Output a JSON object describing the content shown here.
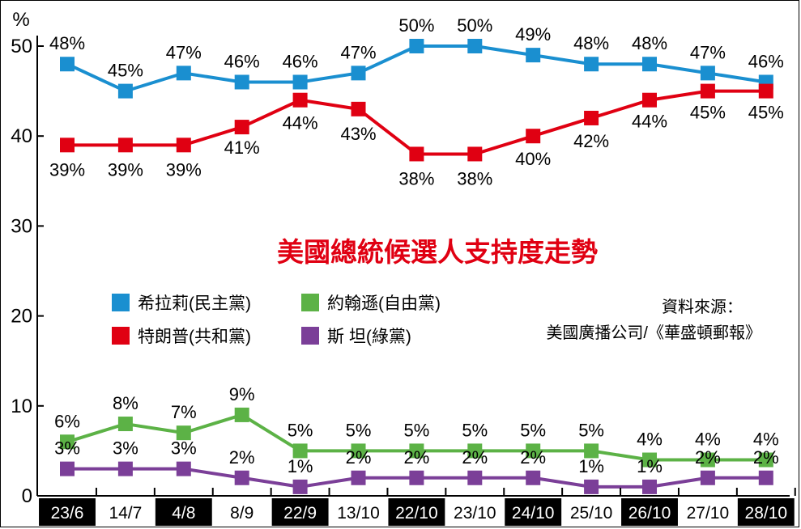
{
  "chart_data": {
    "type": "line",
    "title": "美國總統候選人支持度走勢",
    "ylabel": "%",
    "ylim": [
      0,
      50
    ],
    "yticks": [
      0,
      10,
      20,
      30,
      40,
      50
    ],
    "categories": [
      "23/6",
      "14/7",
      "4/8",
      "8/9",
      "22/9",
      "13/10",
      "22/10",
      "23/10",
      "24/10",
      "25/10",
      "26/10",
      "27/10",
      "28/10"
    ],
    "category_dark_band": [
      true,
      false,
      true,
      false,
      true,
      false,
      true,
      false,
      true,
      false,
      true,
      false,
      true
    ],
    "series": [
      {
        "name": "希拉莉(民主黨)",
        "color": "#1a8fd0",
        "values": [
          48,
          45,
          47,
          46,
          46,
          47,
          50,
          50,
          49,
          48,
          48,
          47,
          46
        ],
        "labels": [
          "48%",
          "45%",
          "47%",
          "46%",
          "46%",
          "47%",
          "50%",
          "50%",
          "49%",
          "48%",
          "48%",
          "47%",
          "46%"
        ]
      },
      {
        "name": "特朗普(共和黨)",
        "color": "#e00012",
        "values": [
          39,
          39,
          39,
          41,
          44,
          43,
          38,
          38,
          40,
          42,
          44,
          45,
          45
        ],
        "labels": [
          "39%",
          "39%",
          "39%",
          "41%",
          "44%",
          "43%",
          "38%",
          "38%",
          "40%",
          "42%",
          "44%",
          "45%",
          "45%"
        ]
      },
      {
        "name": "約翰遜(自由黨)",
        "color": "#5cb246",
        "values": [
          6,
          8,
          7,
          9,
          5,
          5,
          5,
          5,
          5,
          5,
          4,
          4,
          4
        ],
        "labels": [
          "6%",
          "8%",
          "7%",
          "9%",
          "5%",
          "5%",
          "5%",
          "5%",
          "5%",
          "5%",
          "4%",
          "4%",
          "4%"
        ]
      },
      {
        "name": "斯 坦(綠黨)",
        "color": "#7b3f98",
        "values": [
          3,
          3,
          3,
          2,
          1,
          2,
          2,
          2,
          2,
          1,
          1,
          2,
          2
        ],
        "labels": [
          "3%",
          "3%",
          "3%",
          "2%",
          "1%",
          "2%",
          "2%",
          "2%",
          "2%",
          "1%",
          "1%",
          "2%",
          "2%"
        ]
      }
    ],
    "legend": [
      {
        "text": "希拉莉(民主黨)",
        "color": "#1a8fd0"
      },
      {
        "text": "約翰遜(自由黨)",
        "color": "#5cb246"
      },
      {
        "text": "特朗普(共和黨)",
        "color": "#e00012"
      },
      {
        "text": "斯 坦(綠黨)",
        "color": "#7b3f98"
      }
    ],
    "source_label": "資料來源：",
    "source_text": "美國廣播公司/《華盛頓郵報》",
    "grid": false
  }
}
